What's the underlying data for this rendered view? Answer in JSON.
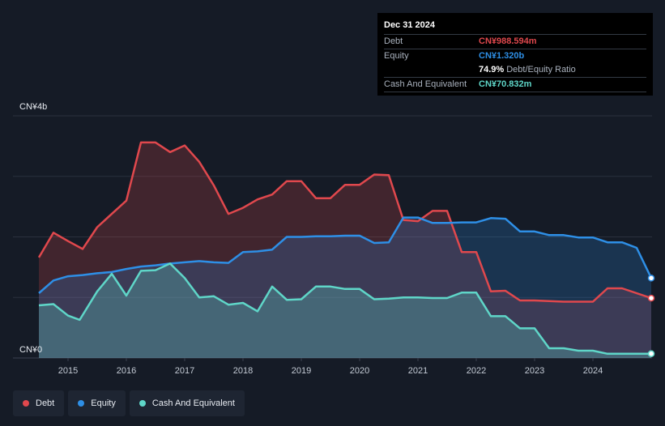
{
  "chart_data": {
    "type": "area",
    "y_unit_labels": [
      "CN¥4b",
      "CN¥0"
    ],
    "ylim": [
      0,
      4000
    ],
    "xlim": [
      2014.5,
      2025.0
    ],
    "x_ticks": [
      "2015",
      "2016",
      "2017",
      "2018",
      "2019",
      "2020",
      "2021",
      "2022",
      "2023",
      "2024"
    ],
    "grid": true,
    "series": [
      {
        "name": "Debt",
        "color": "#e0484d",
        "unit": "CN¥m",
        "points": [
          [
            2014.5,
            1660
          ],
          [
            2014.75,
            2070
          ],
          [
            2015.0,
            1930
          ],
          [
            2015.25,
            1800
          ],
          [
            2015.5,
            2160
          ],
          [
            2015.75,
            2380
          ],
          [
            2016.0,
            2600
          ],
          [
            2016.25,
            3560
          ],
          [
            2016.5,
            3560
          ],
          [
            2016.75,
            3400
          ],
          [
            2017.0,
            3510
          ],
          [
            2017.25,
            3240
          ],
          [
            2017.5,
            2850
          ],
          [
            2017.75,
            2380
          ],
          [
            2018.0,
            2480
          ],
          [
            2018.25,
            2620
          ],
          [
            2018.5,
            2700
          ],
          [
            2018.75,
            2920
          ],
          [
            2019.0,
            2920
          ],
          [
            2019.25,
            2640
          ],
          [
            2019.5,
            2640
          ],
          [
            2019.75,
            2860
          ],
          [
            2020.0,
            2860
          ],
          [
            2020.25,
            3030
          ],
          [
            2020.5,
            3020
          ],
          [
            2020.75,
            2280
          ],
          [
            2021.0,
            2260
          ],
          [
            2021.25,
            2430
          ],
          [
            2021.5,
            2430
          ],
          [
            2021.75,
            1750
          ],
          [
            2022.0,
            1750
          ],
          [
            2022.25,
            1100
          ],
          [
            2022.5,
            1110
          ],
          [
            2022.75,
            950
          ],
          [
            2023.0,
            950
          ],
          [
            2023.5,
            930
          ],
          [
            2024.0,
            930
          ],
          [
            2024.25,
            1150
          ],
          [
            2024.5,
            1150
          ],
          [
            2025.0,
            988.594
          ]
        ]
      },
      {
        "name": "Equity",
        "color": "#2e8fe6",
        "unit": "CN¥m",
        "points": [
          [
            2014.5,
            1070
          ],
          [
            2014.75,
            1280
          ],
          [
            2015.0,
            1350
          ],
          [
            2015.25,
            1370
          ],
          [
            2015.5,
            1400
          ],
          [
            2015.75,
            1420
          ],
          [
            2016.0,
            1470
          ],
          [
            2016.25,
            1510
          ],
          [
            2016.5,
            1530
          ],
          [
            2016.75,
            1560
          ],
          [
            2017.0,
            1580
          ],
          [
            2017.25,
            1600
          ],
          [
            2017.5,
            1580
          ],
          [
            2017.75,
            1570
          ],
          [
            2018.0,
            1750
          ],
          [
            2018.25,
            1760
          ],
          [
            2018.5,
            1790
          ],
          [
            2018.75,
            2000
          ],
          [
            2019.0,
            2000
          ],
          [
            2019.25,
            2010
          ],
          [
            2019.5,
            2010
          ],
          [
            2019.75,
            2020
          ],
          [
            2020.0,
            2020
          ],
          [
            2020.25,
            1900
          ],
          [
            2020.5,
            1910
          ],
          [
            2020.75,
            2320
          ],
          [
            2021.0,
            2320
          ],
          [
            2021.25,
            2230
          ],
          [
            2021.5,
            2230
          ],
          [
            2021.75,
            2240
          ],
          [
            2022.0,
            2240
          ],
          [
            2022.25,
            2310
          ],
          [
            2022.5,
            2300
          ],
          [
            2022.75,
            2090
          ],
          [
            2023.0,
            2090
          ],
          [
            2023.25,
            2030
          ],
          [
            2023.5,
            2030
          ],
          [
            2023.75,
            1990
          ],
          [
            2024.0,
            1990
          ],
          [
            2024.25,
            1910
          ],
          [
            2024.5,
            1910
          ],
          [
            2024.75,
            1820
          ],
          [
            2025.0,
            1320
          ]
        ]
      },
      {
        "name": "Cash And Equivalent",
        "color": "#5fd6c8",
        "unit": "CN¥m",
        "points": [
          [
            2014.5,
            870
          ],
          [
            2014.75,
            890
          ],
          [
            2015.0,
            700
          ],
          [
            2015.2,
            630
          ],
          [
            2015.5,
            1100
          ],
          [
            2015.75,
            1390
          ],
          [
            2016.0,
            1030
          ],
          [
            2016.25,
            1440
          ],
          [
            2016.5,
            1450
          ],
          [
            2016.75,
            1560
          ],
          [
            2017.0,
            1320
          ],
          [
            2017.25,
            1000
          ],
          [
            2017.5,
            1020
          ],
          [
            2017.75,
            880
          ],
          [
            2018.0,
            910
          ],
          [
            2018.25,
            770
          ],
          [
            2018.5,
            1180
          ],
          [
            2018.75,
            960
          ],
          [
            2019.0,
            970
          ],
          [
            2019.25,
            1180
          ],
          [
            2019.5,
            1180
          ],
          [
            2019.75,
            1140
          ],
          [
            2020.0,
            1140
          ],
          [
            2020.25,
            970
          ],
          [
            2020.5,
            980
          ],
          [
            2020.75,
            1000
          ],
          [
            2021.0,
            1000
          ],
          [
            2021.25,
            990
          ],
          [
            2021.5,
            990
          ],
          [
            2021.75,
            1080
          ],
          [
            2022.0,
            1080
          ],
          [
            2022.25,
            690
          ],
          [
            2022.5,
            690
          ],
          [
            2022.75,
            490
          ],
          [
            2023.0,
            490
          ],
          [
            2023.25,
            160
          ],
          [
            2023.5,
            160
          ],
          [
            2023.75,
            120
          ],
          [
            2024.0,
            120
          ],
          [
            2024.25,
            70
          ],
          [
            2024.5,
            70
          ],
          [
            2025.0,
            70.832
          ]
        ]
      }
    ]
  },
  "tooltip": {
    "date": "Dec 31 2024",
    "debt_label": "Debt",
    "debt_value": "CN¥988.594m",
    "equity_label": "Equity",
    "equity_value": "CN¥1.320b",
    "ratio_value": "74.9%",
    "ratio_label": "Debt/Equity Ratio",
    "cash_label": "Cash And Equivalent",
    "cash_value": "CN¥70.832m"
  },
  "legend": [
    {
      "label": "Debt",
      "color": "#e0484d"
    },
    {
      "label": "Equity",
      "color": "#2e8fe6"
    },
    {
      "label": "Cash And Equivalent",
      "color": "#5fd6c8"
    }
  ]
}
